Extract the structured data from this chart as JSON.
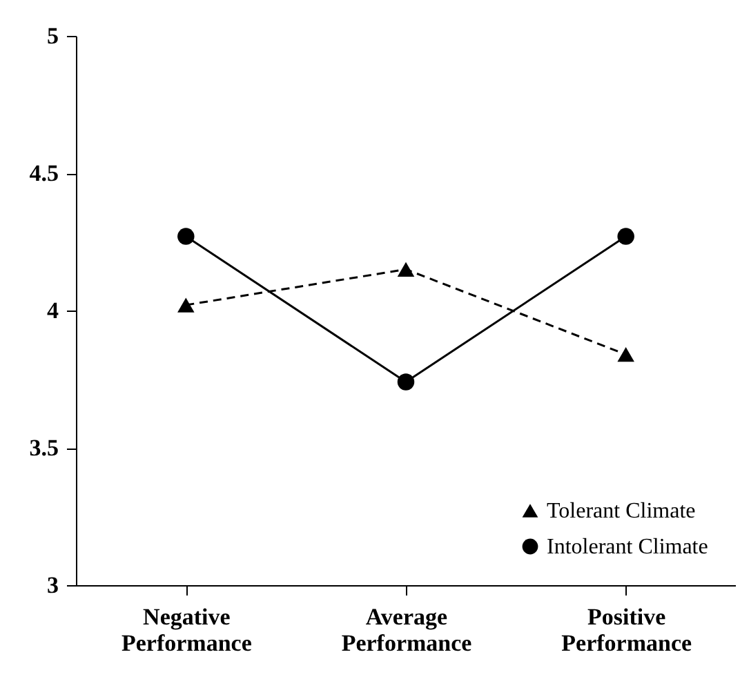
{
  "chart_data": {
    "type": "line",
    "categories": [
      "Negative Performance",
      "Average Performance",
      "Positive Performance"
    ],
    "series": [
      {
        "name": "Tolerant Climate",
        "color": "#000000",
        "values": [
          4.02,
          4.15,
          3.84
        ],
        "marker": "triangle",
        "line_style": "dashed"
      },
      {
        "name": "Intolerant Climate",
        "color": "#000000",
        "values": [
          4.27,
          3.74,
          4.27
        ],
        "marker": "circle",
        "line_style": "solid"
      }
    ],
    "ylim": [
      3,
      5
    ],
    "yticks": [
      3,
      3.5,
      4,
      4.5,
      5
    ],
    "grid": false,
    "legend": "bottom right"
  }
}
